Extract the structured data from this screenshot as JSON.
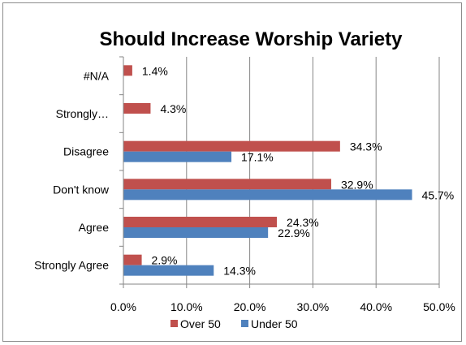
{
  "chart_data": {
    "type": "bar",
    "orientation": "horizontal",
    "title": "Should Increase Worship Variety",
    "categories": [
      "#N/A",
      "Strongly…",
      "Disagree",
      "Don't know",
      "Agree",
      "Strongly Agree"
    ],
    "series": [
      {
        "name": "Over 50",
        "color": "#C0504D",
        "values": [
          1.4,
          4.3,
          34.3,
          32.9,
          24.3,
          2.9
        ],
        "labels": [
          "1.4%",
          "4.3%",
          "34.3%",
          "32.9%",
          "24.3%",
          "2.9%"
        ]
      },
      {
        "name": "Under 50",
        "color": "#4F81BD",
        "values": [
          null,
          null,
          17.1,
          45.7,
          22.9,
          14.3
        ],
        "labels": [
          null,
          null,
          "17.1%",
          "45.7%",
          "22.9%",
          "14.3%"
        ]
      }
    ],
    "xlim": [
      0,
      50
    ],
    "xticks": [
      "0.0%",
      "10.0%",
      "20.0%",
      "30.0%",
      "40.0%",
      "50.0%"
    ],
    "grid": "vertical",
    "legend_position": "bottom"
  }
}
